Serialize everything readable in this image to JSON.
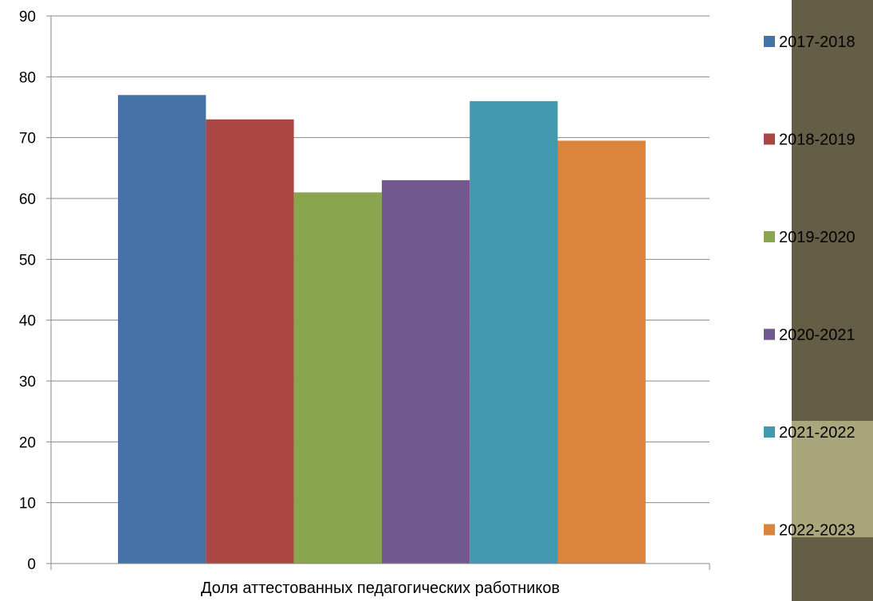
{
  "chart_data": {
    "type": "bar",
    "categories": [
      "Доля аттестованных  педагогических  работников"
    ],
    "series": [
      {
        "name": "2017-2018",
        "values": [
          77
        ],
        "color": "#4572A7"
      },
      {
        "name": "2018-2019",
        "values": [
          73
        ],
        "color": "#AA4643"
      },
      {
        "name": "2019-2020",
        "values": [
          61
        ],
        "color": "#89A54E"
      },
      {
        "name": "2020-2021",
        "values": [
          63
        ],
        "color": "#71588F"
      },
      {
        "name": "2021-2022",
        "values": [
          76
        ],
        "color": "#4198AF"
      },
      {
        "name": "2022-2023",
        "values": [
          69.5
        ],
        "color": "#DB843D"
      }
    ],
    "ylim": [
      0,
      90
    ],
    "yticks": [
      0,
      10,
      20,
      30,
      40,
      50,
      60,
      70,
      80,
      90
    ],
    "grid": true,
    "legend_position": "right"
  },
  "decor": {
    "side_panel_dark": "#655E46",
    "side_panel_light": "#AAA67C"
  }
}
